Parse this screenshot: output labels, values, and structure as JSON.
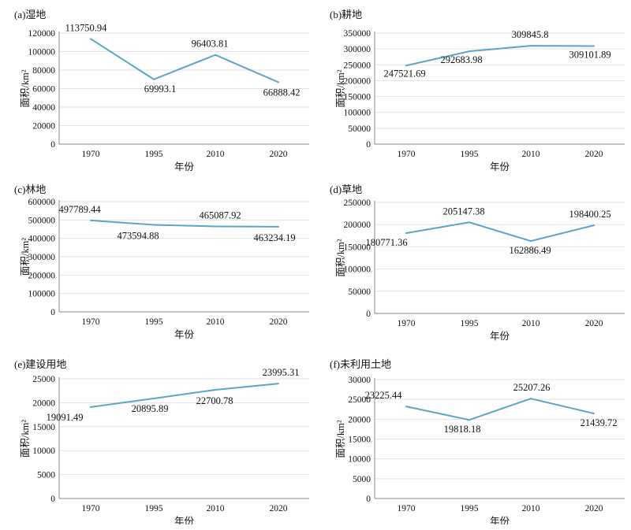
{
  "chart_data": [
    {
      "type": "line",
      "title": "(a)湿地",
      "xlabel": "年份",
      "ylabel": "面积/km²",
      "categories": [
        "1970",
        "1995",
        "2010",
        "2020"
      ],
      "values": [
        113750.94,
        69993.1,
        96403.81,
        66888.42
      ],
      "data_labels": [
        "113750.94",
        "69993.1",
        "96403.81",
        "66888.42"
      ],
      "ylim": [
        0,
        120000
      ],
      "yticks": [
        "0",
        "20000",
        "40000",
        "60000",
        "80000",
        "100000",
        "120000"
      ],
      "grid": true,
      "line_color": "#5aa6c4"
    },
    {
      "type": "line",
      "title": "(b)耕地",
      "xlabel": "年份",
      "ylabel": "面积/km²",
      "categories": [
        "1970",
        "1995",
        "2010",
        "2020"
      ],
      "values": [
        247521.69,
        292683.98,
        309845.8,
        309101.89
      ],
      "data_labels": [
        "247521.69",
        "292683.98",
        "309845.8",
        "309101.89"
      ],
      "ylim": [
        0,
        350000
      ],
      "yticks": [
        "0",
        "50000",
        "100000",
        "150000",
        "200000",
        "250000",
        "300000",
        "350000"
      ],
      "grid": true,
      "line_color": "#5aa6c4"
    },
    {
      "type": "line",
      "title": "(c)林地",
      "xlabel": "年份",
      "ylabel": "面积/km²",
      "categories": [
        "1970",
        "1995",
        "2010",
        "2020"
      ],
      "values": [
        497789.44,
        473594.88,
        465087.92,
        463234.19
      ],
      "data_labels": [
        "497789.44",
        "473594.88",
        "465087.92",
        "463234.19"
      ],
      "ylim": [
        0,
        600000
      ],
      "yticks": [
        "0",
        "100000",
        "200000",
        "300000",
        "400000",
        "500000",
        "600000"
      ],
      "grid": true,
      "line_color": "#5aa6c4"
    },
    {
      "type": "line",
      "title": "(d)草地",
      "xlabel": "年份",
      "ylabel": "面积/km²",
      "categories": [
        "1970",
        "1995",
        "2010",
        "2020"
      ],
      "values": [
        180771.36,
        205147.38,
        162886.49,
        198400.25
      ],
      "data_labels": [
        "180771.36",
        "205147.38",
        "162886.49",
        "198400.25"
      ],
      "ylim": [
        0,
        250000
      ],
      "yticks": [
        "0",
        "50000",
        "100000",
        "150000",
        "200000",
        "250000"
      ],
      "grid": true,
      "line_color": "#5aa6c4"
    },
    {
      "type": "line",
      "title": "(e)建设用地",
      "xlabel": "年份",
      "ylabel": "面积/km²",
      "categories": [
        "1970",
        "1995",
        "2010",
        "2020"
      ],
      "values": [
        19091.49,
        20895.89,
        22700.78,
        23995.31
      ],
      "data_labels": [
        "19091.49",
        "20895.89",
        "22700.78",
        "23995.31"
      ],
      "ylim": [
        0,
        25000
      ],
      "yticks": [
        "0",
        "5000",
        "10000",
        "15000",
        "20000",
        "25000"
      ],
      "grid": true,
      "line_color": "#5aa6c4"
    },
    {
      "type": "line",
      "title": "(f)未利用土地",
      "xlabel": "年份",
      "ylabel": "面积/km²",
      "categories": [
        "1970",
        "1995",
        "2010",
        "2020"
      ],
      "values": [
        23225.44,
        19818.18,
        25207.26,
        21439.72
      ],
      "data_labels": [
        "23225.44",
        "19818.18",
        "25207.26",
        "21439.72"
      ],
      "ylim": [
        0,
        30000
      ],
      "yticks": [
        "0",
        "5000",
        "10000",
        "15000",
        "20000",
        "25000",
        "30000"
      ],
      "grid": true,
      "line_color": "#5aa6c4"
    }
  ]
}
